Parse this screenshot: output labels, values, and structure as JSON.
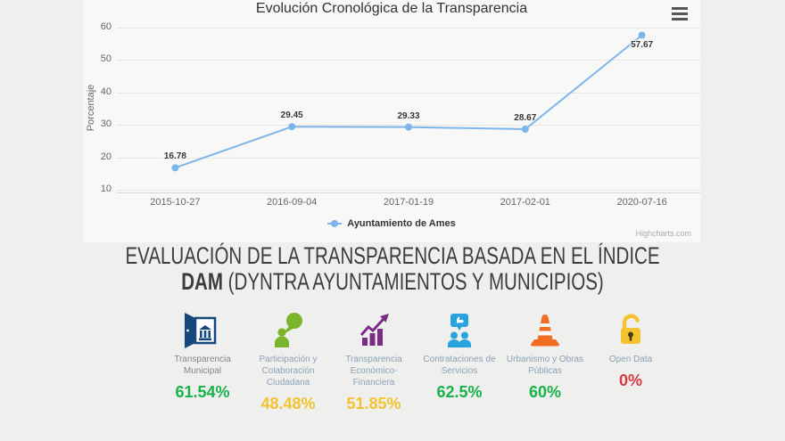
{
  "chart": {
    "title": "Evolución Cronológica de la Transparencia",
    "y_axis_label": "Porcentaje",
    "credit": "Highcharts.com",
    "line_color": "#7cb5ec"
  },
  "chart_data": {
    "type": "line",
    "categories": [
      "2015-10-27",
      "2016-09-04",
      "2017-01-19",
      "2017-02-01",
      "2020-07-16"
    ],
    "series": [
      {
        "name": "Ayuntamiento de Ames",
        "values": [
          16.78,
          29.45,
          29.33,
          28.67,
          57.67
        ]
      }
    ],
    "title": "Evolución Cronológica de la Transparencia",
    "xlabel": "",
    "ylabel": "Porcentaje",
    "ylim": [
      7,
      63
    ],
    "yticks": [
      10,
      20,
      30,
      40,
      50,
      60
    ],
    "grid": true,
    "legend_position": "bottom-center",
    "line_color": "#7cb5ec"
  },
  "heading": {
    "line1": "EVALUACIÓN DE LA TRANSPARENCIA BASADA EN EL ÍNDICE",
    "line2_bold": "DAM",
    "line2_rest": " (DYNTRA AYUNTAMIENTOS Y MUNICIPIOS)"
  },
  "categories": [
    {
      "label": "Transparencia Municipal",
      "value": "61.54%",
      "value_color": "#17b24a",
      "label_color": "#868686",
      "icon": "open-door-building",
      "icon_color": "#16477c"
    },
    {
      "label": "Participación y Colaboración Ciudadana",
      "value": "48.48%",
      "value_color": "#f2c230",
      "label_color": "#8ba1b6",
      "icon": "person-speech-bubble",
      "icon_color": "#7cb42c"
    },
    {
      "label": "Transparencia Económico-Financiera",
      "value": "51.85%",
      "value_color": "#f2c230",
      "label_color": "#8ba1b6",
      "icon": "bar-chart-arrow",
      "icon_color": "#7c2c86"
    },
    {
      "label": "Contrataciones de Servicios",
      "value": "62.5%",
      "value_color": "#17b24a",
      "label_color": "#8ba1b6",
      "icon": "people-thumbs-up-bubble",
      "icon_color": "#29a3dd"
    },
    {
      "label": "Urbanismo y Obras Públicas",
      "value": "60%",
      "value_color": "#17b24a",
      "label_color": "#8ba1b6",
      "icon": "traffic-cone",
      "icon_color": "#f26d21"
    },
    {
      "label": "Open Data",
      "value": "0%",
      "value_color": "#d6383e",
      "label_color": "#8ba1b6",
      "icon": "open-padlock",
      "icon_color": "#f5c231"
    }
  ]
}
